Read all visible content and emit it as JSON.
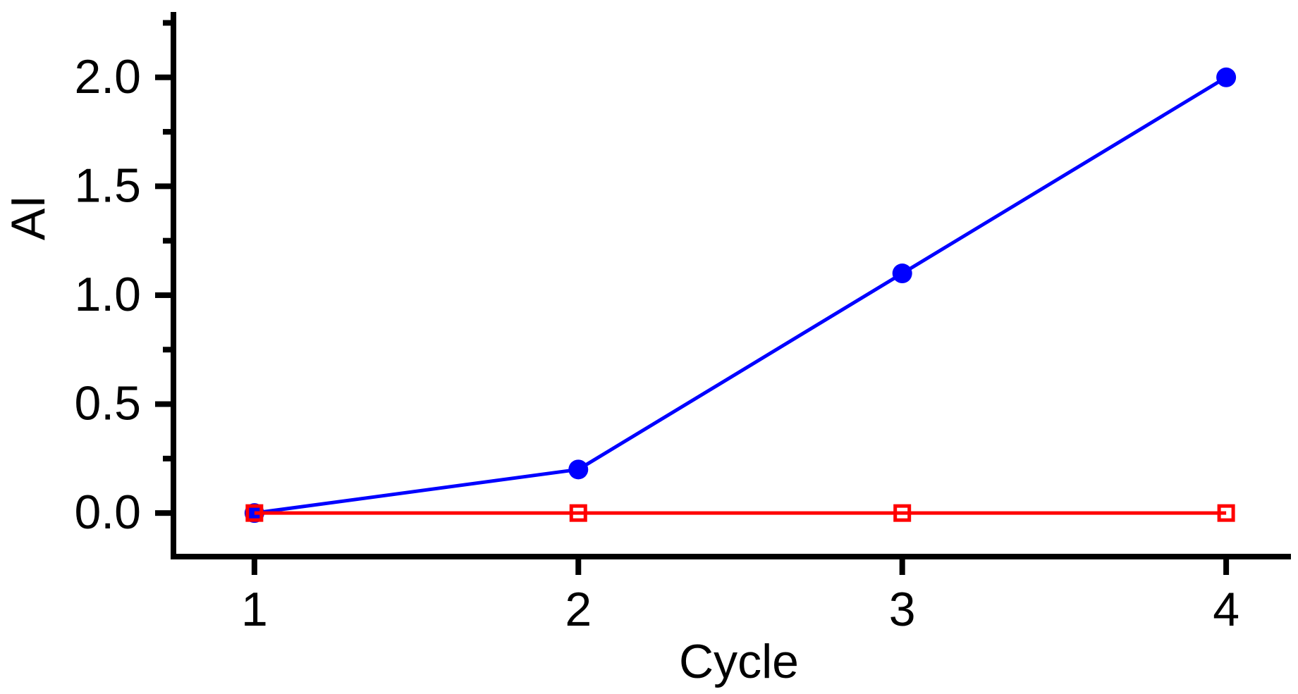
{
  "figure": {
    "background": "#FFFFFF",
    "axis_color": "#000000",
    "text_color": "#000000"
  },
  "chart_data": {
    "type": "line",
    "title": "",
    "xlabel": "Cycle",
    "ylabel": "AI",
    "x": [
      1,
      2,
      3,
      4
    ],
    "x_tick_labels": [
      "1",
      "2",
      "3",
      "4"
    ],
    "y_tick_values": [
      0.0,
      0.5,
      1.0,
      1.5,
      2.0
    ],
    "y_tick_labels": [
      "0.0",
      "0.5",
      "1.0",
      "1.5",
      "2.0"
    ],
    "y_minor_ticks": [
      0.25,
      0.75,
      1.25,
      1.75,
      2.25
    ],
    "xlim": [
      0.75,
      4.2
    ],
    "ylim": [
      -0.2,
      2.3
    ],
    "grid": false,
    "legend": "none",
    "series": [
      {
        "name": "blue-filled-circle-series",
        "color": "#0000FF",
        "marker": "filled-circle",
        "line_width": 5,
        "values": [
          0.0,
          0.2,
          1.1,
          2.0
        ]
      },
      {
        "name": "red-open-square-series",
        "color": "#FF0000",
        "marker": "open-square",
        "line_width": 5,
        "values": [
          0.0,
          0.0,
          0.0,
          0.0
        ]
      }
    ]
  }
}
